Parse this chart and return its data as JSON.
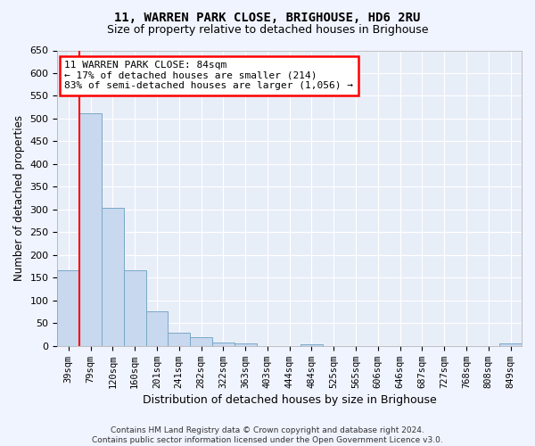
{
  "title": "11, WARREN PARK CLOSE, BRIGHOUSE, HD6 2RU",
  "subtitle": "Size of property relative to detached houses in Brighouse",
  "xlabel": "Distribution of detached houses by size in Brighouse",
  "ylabel": "Number of detached properties",
  "bar_labels": [
    "39sqm",
    "79sqm",
    "120sqm",
    "160sqm",
    "201sqm",
    "241sqm",
    "282sqm",
    "322sqm",
    "363sqm",
    "403sqm",
    "444sqm",
    "484sqm",
    "525sqm",
    "565sqm",
    "606sqm",
    "646sqm",
    "687sqm",
    "727sqm",
    "768sqm",
    "808sqm",
    "849sqm"
  ],
  "bar_values": [
    167,
    511,
    304,
    166,
    77,
    30,
    19,
    8,
    5,
    0,
    0,
    3,
    0,
    0,
    0,
    0,
    0,
    0,
    0,
    0,
    5
  ],
  "bar_color": "#c8d8ee",
  "bar_edge_color": "#7aA8c8",
  "property_line_x": 1.0,
  "property_size": "84sqm",
  "annotation_title": "11 WARREN PARK CLOSE: 84sqm",
  "annotation_line1": "← 17% of detached houses are smaller (214)",
  "annotation_line2": "83% of semi-detached houses are larger (1,056) →",
  "annotation_box_color": "red",
  "ylim": [
    0,
    650
  ],
  "yticks": [
    0,
    50,
    100,
    150,
    200,
    250,
    300,
    350,
    400,
    450,
    500,
    550,
    600,
    650
  ],
  "footer_line1": "Contains HM Land Registry data © Crown copyright and database right 2024.",
  "footer_line2": "Contains public sector information licensed under the Open Government Licence v3.0.",
  "background_color": "#f0f4ff",
  "plot_bg_color": "#e8eef8",
  "grid_color": "#ffffff"
}
